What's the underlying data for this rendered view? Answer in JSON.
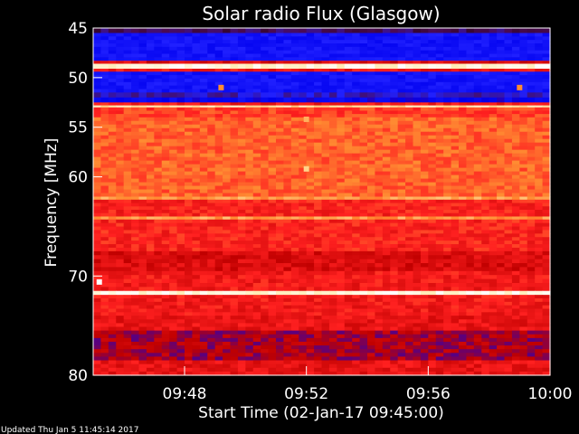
{
  "chart_data": {
    "type": "heatmap",
    "title": "Solar radio Flux (Glasgow)",
    "xlabel": "Start Time (02-Jan-17 09:45:00)",
    "ylabel": "Frequency [MHz]",
    "x_range_minutes": [
      0,
      15
    ],
    "x_ticks": [
      {
        "minutes": 3,
        "label": "09:48"
      },
      {
        "minutes": 7,
        "label": "09:52"
      },
      {
        "minutes": 11,
        "label": "09:56"
      },
      {
        "minutes": 15,
        "label": "10:00"
      }
    ],
    "ylim": [
      45,
      80
    ],
    "y_inverted": true,
    "y_ticks": [
      45,
      50,
      55,
      60,
      70,
      80
    ],
    "colormap": [
      "#1a0000",
      "#4a0a55",
      "#2020ff",
      "#0000ee",
      "#c00000",
      "#ff2020",
      "#ff8c32",
      "#ffe6a0",
      "#ffffff"
    ],
    "frequency_bands": [
      {
        "from": 45.0,
        "to": 45.5,
        "intensity": 0.12
      },
      {
        "from": 45.5,
        "to": 48.3,
        "intensity": 0.3
      },
      {
        "from": 48.3,
        "to": 48.6,
        "intensity": 0.55
      },
      {
        "from": 48.6,
        "to": 49.1,
        "intensity": 0.95
      },
      {
        "from": 49.1,
        "to": 49.4,
        "intensity": 0.6
      },
      {
        "from": 49.4,
        "to": 51.5,
        "intensity": 0.3
      },
      {
        "from": 51.5,
        "to": 52.0,
        "intensity": 0.2
      },
      {
        "from": 52.0,
        "to": 52.5,
        "intensity": 0.35
      },
      {
        "from": 52.5,
        "to": 52.8,
        "intensity": 0.6
      },
      {
        "from": 52.8,
        "to": 53.0,
        "intensity": 0.88
      },
      {
        "from": 53.0,
        "to": 54.0,
        "intensity": 0.66
      },
      {
        "from": 54.0,
        "to": 62.0,
        "intensity": 0.7
      },
      {
        "from": 62.0,
        "to": 62.3,
        "intensity": 0.78
      },
      {
        "from": 62.3,
        "to": 64.0,
        "intensity": 0.62
      },
      {
        "from": 64.0,
        "to": 64.3,
        "intensity": 0.78
      },
      {
        "from": 64.3,
        "to": 67.5,
        "intensity": 0.62
      },
      {
        "from": 67.5,
        "to": 69.5,
        "intensity": 0.55
      },
      {
        "from": 69.5,
        "to": 71.5,
        "intensity": 0.6
      },
      {
        "from": 71.5,
        "to": 71.9,
        "intensity": 0.95
      },
      {
        "from": 71.9,
        "to": 74.0,
        "intensity": 0.6
      },
      {
        "from": 74.0,
        "to": 75.5,
        "intensity": 0.58
      },
      {
        "from": 75.5,
        "to": 78.5,
        "intensity": 0.48
      },
      {
        "from": 78.5,
        "to": 80.0,
        "intensity": 0.58
      }
    ],
    "annotations": [
      {
        "minutes": 7.0,
        "frequency": 54.2,
        "intensity": 0.8
      },
      {
        "minutes": 7.0,
        "frequency": 59.2,
        "intensity": 0.85
      },
      {
        "minutes": 4.2,
        "frequency": 51.0,
        "intensity": 0.75
      },
      {
        "minutes": 14.0,
        "frequency": 51.0,
        "intensity": 0.75
      },
      {
        "minutes": 0.2,
        "frequency": 70.6,
        "intensity": 1.0
      }
    ]
  },
  "footer": {
    "updated_text": "Updated Thu Jan  5 11:45:14 2017"
  }
}
